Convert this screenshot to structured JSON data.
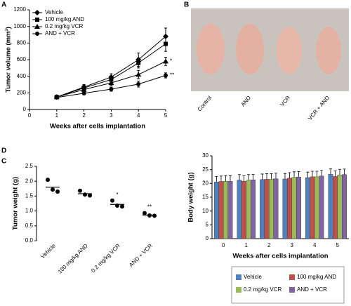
{
  "chart_data": [
    {
      "type": "line",
      "panel": "A",
      "y_label": "Tumor volume (mm³)",
      "x_label": "Weeks after cells implantation",
      "x": [
        1,
        2,
        3,
        4,
        5
      ],
      "xlim": [
        0,
        5
      ],
      "xticks": [
        0,
        1,
        2,
        3,
        4,
        5
      ],
      "ylim": [
        0,
        1200
      ],
      "yticks": [
        0,
        200,
        400,
        600,
        800,
        1000,
        1200
      ],
      "series": [
        {
          "name": "Vehicle",
          "color": "#000000",
          "marker": "diamond",
          "values": [
            150,
            270,
            390,
            600,
            880
          ],
          "errors": [
            20,
            30,
            40,
            80,
            100
          ]
        },
        {
          "name": "100 mg/kg AND",
          "color": "#000000",
          "marker": "square",
          "values": [
            150,
            260,
            360,
            560,
            790
          ],
          "errors": [
            20,
            30,
            40,
            60,
            90
          ]
        },
        {
          "name": "0.2 mg/kg VCR",
          "color": "#000000",
          "marker": "triangle",
          "values": [
            150,
            240,
            320,
            420,
            580
          ],
          "errors": [
            20,
            25,
            30,
            50,
            50
          ],
          "significance": "*"
        },
        {
          "name": "AND + VCR",
          "color": "#000000",
          "marker": "circle",
          "values": [
            145,
            195,
            245,
            305,
            410
          ],
          "errors": [
            15,
            20,
            25,
            35,
            30
          ],
          "significance": "**"
        }
      ]
    },
    {
      "type": "dot",
      "panel": "C",
      "y_label": "Tumor weight (g)",
      "categories": [
        "Vehicle",
        "100 mg/kg AND",
        "0.2 mg/kg VCR",
        "AND + VCR"
      ],
      "values": [
        [
          2.05,
          1.72,
          1.65
        ],
        [
          1.68,
          1.55,
          1.52
        ],
        [
          1.35,
          1.18,
          1.15
        ],
        [
          0.93,
          0.85,
          0.84
        ]
      ],
      "means": [
        1.8,
        1.58,
        1.22,
        0.86
      ],
      "significance": [
        null,
        null,
        "*",
        "**"
      ],
      "ylim": [
        0,
        2.5
      ],
      "yticks": [
        {
          "value": 0,
          "label": "0.0"
        },
        0.5,
        {
          "value": 1,
          "label": "1.0"
        },
        1.5,
        {
          "value": 2,
          "label": "2.0"
        },
        2.5
      ]
    },
    {
      "type": "grouped_bar",
      "panel": "D",
      "y_label": "Body weight (g)",
      "x_label": "Weeks after cells implantation",
      "categories": [
        "0",
        "1",
        "2",
        "3",
        "4",
        "5"
      ],
      "ylim": [
        0,
        30
      ],
      "yticks": [
        0,
        5,
        10,
        15,
        20,
        25,
        30
      ],
      "series": [
        {
          "name": "Vehicle",
          "color": "#4f81bd",
          "values": [
            20.5,
            21.2,
            21.4,
            21.6,
            22.1,
            23.3
          ],
          "errors": [
            2,
            2,
            2,
            2,
            2,
            2
          ]
        },
        {
          "name": "100 mg/kg AND",
          "color": "#c0504d",
          "values": [
            20.7,
            20.8,
            21.5,
            21.9,
            22.4,
            22.5
          ],
          "errors": [
            2,
            2,
            2,
            2,
            2,
            2
          ]
        },
        {
          "name": "0.2 mg/kg VCR",
          "color": "#9bbb59",
          "values": [
            20.8,
            21.2,
            21.5,
            22.2,
            22.4,
            23.1
          ],
          "errors": [
            2,
            2,
            2,
            2,
            2,
            2
          ]
        },
        {
          "name": "AND + VCR",
          "color": "#8064a2",
          "values": [
            20.8,
            21.3,
            21.7,
            22.3,
            22.7,
            23.2
          ],
          "errors": [
            2,
            2,
            2,
            2,
            2,
            2
          ]
        }
      ]
    }
  ],
  "photo_panel": {
    "panel": "B",
    "labels": [
      "Control",
      "AND",
      "VCR",
      "VCR + AND"
    ]
  }
}
